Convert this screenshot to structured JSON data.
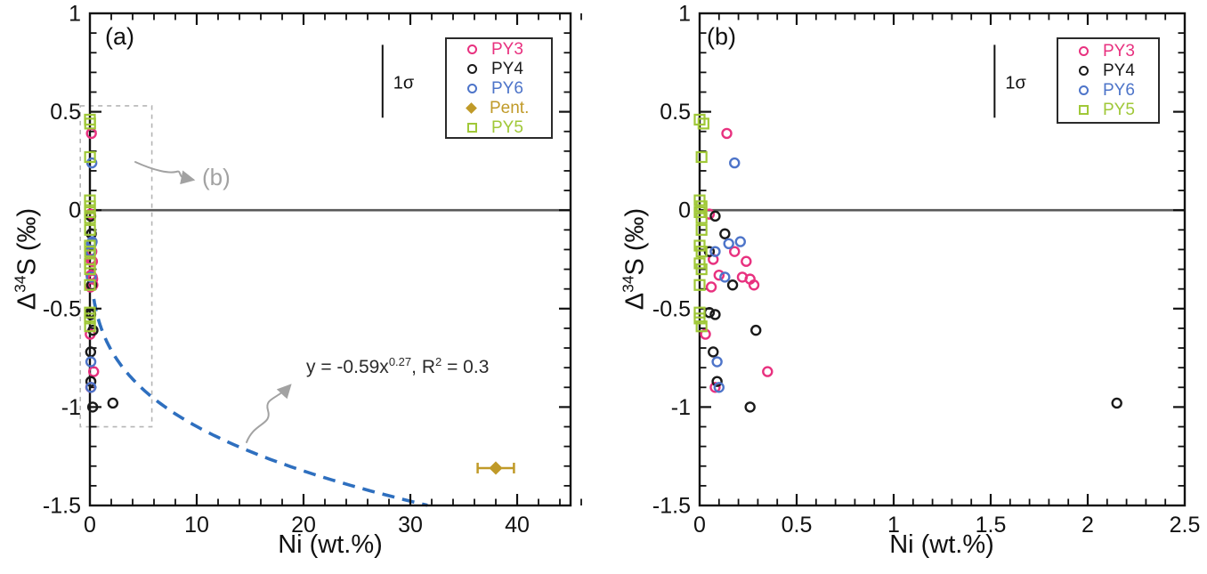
{
  "labels": {
    "panel_a": "(a)",
    "panel_b": "(b)",
    "xlabel": "Ni (wt.%)",
    "ylabel": {
      "delta": "Δ",
      "isotope": "34",
      "rest": "S (‰)"
    },
    "pointer_b": "(b)",
    "sigma": "1σ",
    "equation": {
      "pre": "y = -0.59x",
      "sup1": "0.27",
      "mid": ", R",
      "sup2": "2",
      "post": " = 0.3"
    }
  },
  "colors": {
    "fit_curve": "#2e6fbf",
    "zero_line": "#595959",
    "annotation_gray": "#a2a2a2",
    "zoom_box": "#b5b5b5",
    "axis": "#111111"
  },
  "chart_data": {
    "type": "scatter",
    "series": [
      {
        "name": "PY3",
        "marker": "circle",
        "color": "#e8317f",
        "points": [
          [
            0.14,
            0.39
          ],
          [
            0.05,
            -0.02
          ],
          [
            0.07,
            -0.25
          ],
          [
            0.18,
            -0.21
          ],
          [
            0.24,
            -0.26
          ],
          [
            0.1,
            -0.33
          ],
          [
            0.22,
            -0.34
          ],
          [
            0.26,
            -0.35
          ],
          [
            0.28,
            -0.38
          ],
          [
            0.06,
            -0.39
          ],
          [
            0.03,
            -0.63
          ],
          [
            0.35,
            -0.82
          ],
          [
            0.08,
            -0.9
          ]
        ]
      },
      {
        "name": "PY4",
        "marker": "circle",
        "color": "#1a1a1a",
        "points": [
          [
            0.08,
            -0.03
          ],
          [
            0.13,
            -0.12
          ],
          [
            0.05,
            -0.21
          ],
          [
            0.17,
            -0.38
          ],
          [
            0.05,
            -0.52
          ],
          [
            0.08,
            -0.53
          ],
          [
            0.29,
            -0.61
          ],
          [
            0.07,
            -0.72
          ],
          [
            0.09,
            -0.87
          ],
          [
            0.26,
            -1.0
          ],
          [
            2.15,
            -0.98
          ]
        ]
      },
      {
        "name": "PY6",
        "marker": "circle",
        "color": "#4d74c9",
        "points": [
          [
            0.18,
            0.24
          ],
          [
            0.15,
            -0.17
          ],
          [
            0.21,
            -0.16
          ],
          [
            0.08,
            -0.21
          ],
          [
            0.13,
            -0.34
          ],
          [
            0.09,
            -0.77
          ],
          [
            0.1,
            -0.9
          ]
        ]
      },
      {
        "name": "Pent.",
        "marker": "diamond",
        "color": "#c09a28",
        "x_error": 1.7,
        "points": [
          [
            38,
            -1.31
          ]
        ]
      },
      {
        "name": "PY5",
        "marker": "square",
        "color": "#a0c838",
        "points": [
          [
            0.0,
            0.46
          ],
          [
            0.02,
            0.44
          ],
          [
            0.01,
            0.27
          ],
          [
            0.0,
            0.05
          ],
          [
            0.01,
            0.02
          ],
          [
            0.0,
            -0.01
          ],
          [
            0.01,
            -0.04
          ],
          [
            0.01,
            -0.1
          ],
          [
            0.0,
            -0.18
          ],
          [
            0.01,
            -0.21
          ],
          [
            0.0,
            -0.27
          ],
          [
            0.01,
            -0.3
          ],
          [
            0.0,
            -0.38
          ],
          [
            0.0,
            -0.52
          ],
          [
            0.0,
            -0.55
          ],
          [
            0.01,
            -0.59
          ]
        ]
      }
    ],
    "panels": [
      {
        "id": "a",
        "xlabel": "Ni (wt.%)",
        "xlim": [
          0,
          45
        ],
        "ylim": [
          -1.5,
          1
        ],
        "x_major_ticks": [
          0,
          10,
          20,
          30,
          40
        ],
        "x_major_labels": [
          "0",
          "10",
          "20",
          "30",
          "40"
        ],
        "x_minor_step": 2,
        "y_major_ticks": [
          1,
          0.5,
          0,
          -0.5,
          -1,
          -1.5
        ],
        "y_major_labels": [
          "1",
          "0.5",
          "0",
          "-0.5",
          "-1",
          "-1.5"
        ],
        "y_minor_step": 0.1,
        "zero_line": 0,
        "series": [
          "PY3",
          "PY4",
          "PY6",
          "Pent.",
          "PY5"
        ],
        "sigma_bar": {
          "x": 27.4,
          "y_top": 0.84,
          "y_bottom": 0.47
        },
        "fit_curve": {
          "coefficient": -0.59,
          "exponent": 0.27,
          "x_start": 0.37,
          "x_end": 31.6,
          "r_squared": 0.3
        },
        "zoom_box": {
          "x0": -0.9,
          "x1": 5.8,
          "y0": -1.1,
          "y1": 0.53
        }
      },
      {
        "id": "b",
        "xlabel": "Ni (wt.%)",
        "xlim": [
          0,
          2.5
        ],
        "ylim": [
          -1.5,
          1
        ],
        "x_major_ticks": [
          0,
          0.5,
          1,
          1.5,
          2,
          2.5
        ],
        "x_major_labels": [
          "0",
          "0.5",
          "1",
          "1.5",
          "2",
          "2.5"
        ],
        "x_minor_step": 0.1,
        "y_major_ticks": [
          1,
          0.5,
          0,
          -0.5,
          -1,
          -1.5
        ],
        "y_major_labels": [
          "1",
          "0.5",
          "0",
          "-0.5",
          "-1",
          "-1.5"
        ],
        "y_minor_step": 0.1,
        "zero_line": 0,
        "series": [
          "PY3",
          "PY4",
          "PY6",
          "PY5"
        ],
        "sigma_bar": {
          "x": 1.52,
          "y_top": 0.84,
          "y_bottom": 0.47
        }
      }
    ],
    "legends": [
      {
        "panel": "a",
        "items": [
          "PY3",
          "PY4",
          "PY6",
          "Pent.",
          "PY5"
        ]
      },
      {
        "panel": "b",
        "items": [
          "PY3",
          "PY4",
          "PY6",
          "PY5"
        ]
      }
    ]
  }
}
